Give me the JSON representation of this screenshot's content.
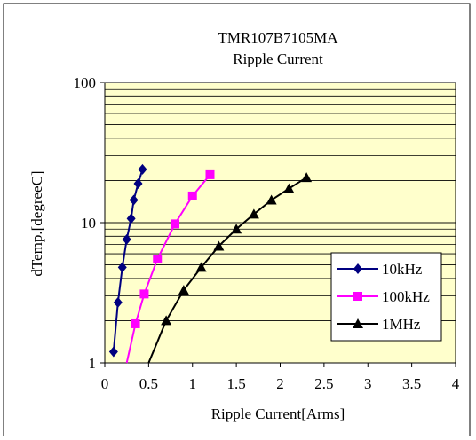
{
  "chart_data": {
    "type": "line",
    "title": "TMR107B7105MA",
    "subtitle": "Ripple Current",
    "xlabel": "Ripple Current[Arms]",
    "ylabel": "dTemp.[degreeC]",
    "xlim": [
      0,
      4
    ],
    "ylim": [
      1,
      100
    ],
    "yscale": "log",
    "x_ticks": [
      "0",
      "0.5",
      "1",
      "1.5",
      "2",
      "2.5",
      "3",
      "3.5",
      "4"
    ],
    "y_ticks": [
      "1",
      "10",
      "100"
    ],
    "grid": true,
    "legend_position": "bottom-right",
    "plot_background": "#ffffcc",
    "series": [
      {
        "name": "10kHz",
        "color": "#000080",
        "marker": "diamond",
        "x": [
          0.1,
          0.15,
          0.2,
          0.25,
          0.3,
          0.33,
          0.38,
          0.43
        ],
        "y": [
          1.2,
          2.7,
          4.8,
          7.6,
          10.7,
          14.5,
          19,
          24
        ]
      },
      {
        "name": "100kHz",
        "color": "#ff00ff",
        "marker": "square",
        "x": [
          0.25,
          0.35,
          0.45,
          0.6,
          0.8,
          1.0,
          1.2
        ],
        "y": [
          1.0,
          1.9,
          3.1,
          5.5,
          9.8,
          15.5,
          22
        ]
      },
      {
        "name": "1MHz",
        "color": "#000000",
        "marker": "triangle",
        "x": [
          0.5,
          0.7,
          0.9,
          1.1,
          1.3,
          1.5,
          1.7,
          1.9,
          2.1,
          2.3
        ],
        "y": [
          1.0,
          2.0,
          3.3,
          4.8,
          6.8,
          9.0,
          11.5,
          14.5,
          17.5,
          21
        ]
      }
    ]
  }
}
